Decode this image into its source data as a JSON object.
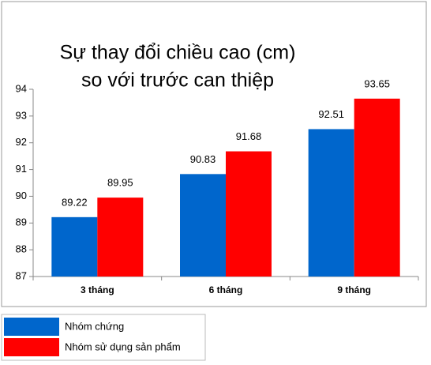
{
  "chart_data": {
    "type": "bar",
    "title": [
      "Sự thay đổi chiều cao (cm)",
      "so với trước can thiệp"
    ],
    "categories": [
      "3 tháng",
      "6 tháng",
      "9 tháng"
    ],
    "series": [
      {
        "name": "Nhóm chứng",
        "color": "#0066cc",
        "values": [
          89.22,
          90.83,
          92.51
        ]
      },
      {
        "name": "Nhóm sử dụng sản phẩm",
        "color": "#ff0000",
        "values": [
          89.95,
          91.68,
          93.65
        ]
      }
    ],
    "ylim": [
      87,
      94
    ],
    "yticks": [
      87,
      88,
      89,
      90,
      91,
      92,
      93,
      94
    ],
    "grid": false,
    "legend": "bottom-left"
  }
}
